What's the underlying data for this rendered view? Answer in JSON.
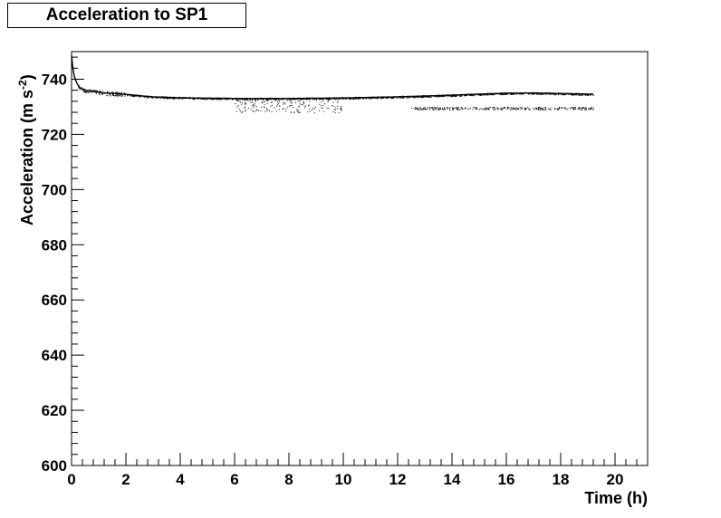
{
  "chart_data": {
    "type": "scatter",
    "title": "Acceleration to SP1",
    "xlabel": "Time (h)",
    "ylabel_main": "Acceleration (m s",
    "ylabel_sup": "-2",
    "ylabel_close": ")",
    "xlim": [
      0,
      21.2
    ],
    "ylim": [
      600,
      750
    ],
    "x_ticks": [
      0,
      2,
      4,
      6,
      8,
      10,
      12,
      14,
      16,
      18,
      20
    ],
    "y_ticks": [
      600,
      620,
      640,
      660,
      680,
      700,
      720,
      740
    ],
    "x_minor_step": 0.4,
    "y_minor_step": 4,
    "grid": false,
    "legend": "none",
    "series": [
      {
        "main_trend": {
          "x": [
            0.0,
            0.05,
            0.1,
            0.2,
            0.3,
            0.5,
            0.8,
            1.2,
            1.6,
            2.0,
            2.5,
            3.0,
            4.0,
            5.0,
            6.0,
            7.0,
            8.0,
            9.0,
            10.0,
            11.0,
            12.0,
            13.0,
            14.0,
            15.0,
            16.0,
            17.0,
            18.0,
            19.0,
            19.2
          ],
          "y": [
            748.5,
            744.0,
            741.0,
            738.5,
            737.0,
            736.0,
            735.5,
            735.0,
            734.8,
            734.5,
            734.0,
            733.6,
            733.3,
            733.1,
            733.0,
            733.0,
            733.0,
            733.1,
            733.2,
            733.4,
            733.6,
            733.9,
            734.2,
            734.6,
            734.9,
            735.0,
            734.8,
            734.6,
            734.6
          ]
        },
        "lower_clusters": [
          {
            "x_range": [
              6.0,
              10.0
            ],
            "y_range": [
              728,
              733
            ]
          },
          {
            "x_range": [
              12.5,
              15.0
            ],
            "y_range": [
              729,
              730
            ]
          },
          {
            "x_range": [
              15.0,
              19.2
            ],
            "y_range": [
              729,
              730
            ]
          }
        ],
        "color": "#000000"
      }
    ]
  }
}
